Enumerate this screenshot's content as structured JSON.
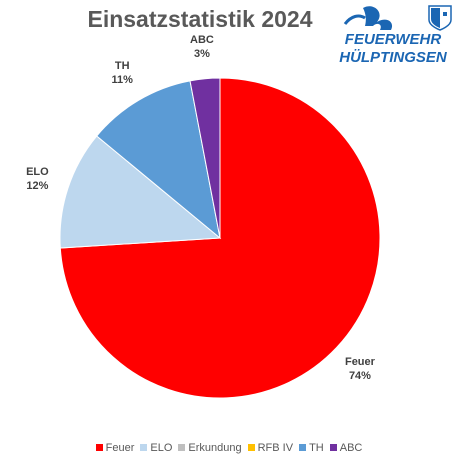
{
  "chart_data": {
    "type": "pie",
    "title": "Einsatzstatistik 2024",
    "categories": [
      "Feuer",
      "ELO",
      "Erkundung",
      "RFB IV",
      "TH",
      "ABC"
    ],
    "values": [
      74,
      12,
      0,
      0,
      11,
      3
    ],
    "value_labels": [
      "74%",
      "12%",
      "",
      "",
      "11%",
      "3%"
    ],
    "colors": [
      "#ff0000",
      "#bdd7ee",
      "#bfbfbf",
      "#ffc000",
      "#5b9bd5",
      "#7030a0"
    ],
    "legend_position": "bottom"
  },
  "logo": {
    "line1": "FEUERWEHR",
    "line2": "HÜLPTINGSEN",
    "icon": "flame-icon",
    "crest": "coat-of-arms-icon",
    "color": "#1b66b3"
  }
}
